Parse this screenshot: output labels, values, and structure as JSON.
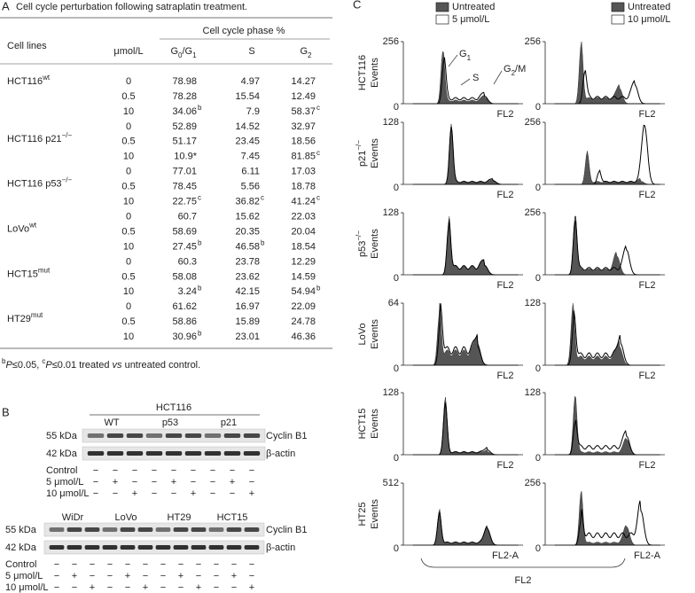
{
  "panel_a": {
    "label": "A",
    "title": "Cell cycle perturbation following satraplatin treatment.",
    "header": {
      "cell_lines": "Cell lines",
      "dose": "μmol/L",
      "phase": "Cell cycle phase %",
      "g0g1": [
        "G",
        "0",
        "/G",
        "1"
      ],
      "s": "S",
      "g2": [
        "G",
        "2"
      ]
    },
    "groups": [
      {
        "name": "HCT116",
        "sup": "wt",
        "rows": [
          [
            "0",
            "78.98",
            "4.97",
            "14.27"
          ],
          [
            "0.5",
            "78.28",
            "15.54",
            "12.49"
          ],
          [
            "10",
            {
              "text": "34.06",
              "sup": "b"
            },
            "7.9",
            {
              "text": "58.37",
              "sup": "c"
            }
          ]
        ]
      },
      {
        "name": "HCT116 p21",
        "sup": "−/−",
        "rows": [
          [
            "0",
            "52.89",
            "14.52",
            "32.97"
          ],
          [
            "0.5",
            "51.17",
            "23.45",
            "18.56"
          ],
          [
            "10",
            "10.9*",
            "7.45",
            {
              "text": "81.85",
              "sup": "c"
            }
          ]
        ]
      },
      {
        "name": "HCT116 p53",
        "sup": "−/−",
        "rows": [
          [
            "0",
            "77.01",
            "6.11",
            "17.03"
          ],
          [
            "0.5",
            "78.45",
            "5.56",
            "18.78"
          ],
          [
            "10",
            {
              "text": "22.75",
              "sup": "c"
            },
            {
              "text": "36.82",
              "sup": "c"
            },
            {
              "text": "41.24",
              "sup": "c"
            }
          ]
        ]
      },
      {
        "name": "LoVo",
        "sup": "wt",
        "rows": [
          [
            "0",
            "60.7",
            "15.62",
            "22.03"
          ],
          [
            "0.5",
            "58.69",
            "20.35",
            "20.04"
          ],
          [
            "10",
            {
              "text": "27.45",
              "sup": "b"
            },
            {
              "text": "46.58",
              "sup": "b"
            },
            "18.54"
          ]
        ]
      },
      {
        "name": "HCT15",
        "sup": "mut",
        "rows": [
          [
            "0",
            "60.3",
            "23.78",
            "12.29"
          ],
          [
            "0.5",
            "58.08",
            "23.62",
            "14.59"
          ],
          [
            "10",
            {
              "text": "3.24",
              "sup": "b"
            },
            "42.15",
            {
              "text": "54.94",
              "sup": "b"
            }
          ]
        ]
      },
      {
        "name": "HT29",
        "sup": "mut",
        "rows": [
          [
            "0",
            "61.62",
            "16.97",
            "22.09"
          ],
          [
            "0.5",
            "58.86",
            "15.89",
            "24.78"
          ],
          [
            "10",
            {
              "text": "30.96",
              "sup": "b"
            },
            "23.01",
            "46.36"
          ]
        ]
      }
    ],
    "footnote": [
      {
        "text": "b",
        "style": "sup"
      },
      {
        "text": "P",
        "style": "i"
      },
      {
        "text": "≤0.05, "
      },
      {
        "text": "c",
        "style": "sup"
      },
      {
        "text": "P",
        "style": "i"
      },
      {
        "text": "≤0.01 treated "
      },
      {
        "text": "vs",
        "style": "i"
      },
      {
        "text": " untreated control."
      }
    ]
  },
  "panel_b": {
    "label": "B",
    "blots": [
      {
        "title": "HCT116",
        "groups": [
          "WT",
          "p53",
          "p21"
        ],
        "markers": [
          "55 kDa",
          "42 kDa"
        ],
        "proteins": [
          "Cyclin B1",
          "β-actin"
        ],
        "conditions": [
          "Control",
          "5 μmol/L",
          "10 μmol/L"
        ],
        "signs": [
          [
            "−",
            "−",
            "−",
            "−",
            "−",
            "−",
            "−",
            "−",
            "−"
          ],
          [
            "−",
            "+",
            "−",
            "−",
            "+",
            "−",
            "−",
            "+",
            "−"
          ],
          [
            "−",
            "−",
            "+",
            "−",
            "−",
            "+",
            "−",
            "−",
            "+"
          ]
        ]
      },
      {
        "groups": [
          "WiDr",
          "LoVo",
          "HT29",
          "HCT15"
        ],
        "markers": [
          "55 kDa",
          "42 kDa"
        ],
        "proteins": [
          "Cyclin B1",
          "β-actin"
        ],
        "conditions": [
          "Control",
          "5 μmol/L",
          "10 μmol/L"
        ],
        "signs": [
          [
            "−",
            "−",
            "−",
            "−",
            "−",
            "−",
            "−",
            "−",
            "−",
            "−",
            "−",
            "−"
          ],
          [
            "−",
            "+",
            "−",
            "−",
            "+",
            "−",
            "−",
            "+",
            "−",
            "−",
            "+",
            "−"
          ],
          [
            "−",
            "−",
            "+",
            "−",
            "−",
            "+",
            "−",
            "−",
            "+",
            "−",
            "−",
            "+"
          ]
        ]
      }
    ]
  },
  "panel_c": {
    "label": "C",
    "legends": [
      [
        "Untreated",
        "5 μmol/L"
      ],
      [
        "Untreated",
        "10 μmol/L"
      ]
    ],
    "y_title": "Events",
    "rows": [
      {
        "name": "HCT116",
        "yticks": [
          [
            0,
            256
          ],
          [
            0,
            256
          ]
        ],
        "xlabel": "FL2"
      },
      {
        "name": "p21",
        "sup": "−/−",
        "yticks": [
          [
            0,
            128
          ],
          [
            0,
            256
          ]
        ],
        "xlabel": "FL2"
      },
      {
        "name": "p53",
        "sup": "−/−",
        "yticks": [
          [
            0,
            128
          ],
          [
            0,
            256
          ]
        ],
        "xlabel": "FL2"
      },
      {
        "name": "LoVo",
        "yticks": [
          [
            0,
            64
          ],
          [
            0,
            128
          ]
        ],
        "xlabel": "FL2"
      },
      {
        "name": "HCT15",
        "yticks": [
          [
            0,
            128
          ],
          [
            0,
            128
          ]
        ],
        "xlabel": "FL2"
      },
      {
        "name": "HT25",
        "yticks": [
          [
            0,
            512
          ],
          [
            0,
            256
          ]
        ],
        "xlabel": "FL2-A"
      }
    ],
    "phases": {
      "g1": [
        "G",
        "1"
      ],
      "s": "S",
      "g2m": [
        "G",
        "2",
        "/M"
      ]
    },
    "x_title": "FL2"
  }
}
